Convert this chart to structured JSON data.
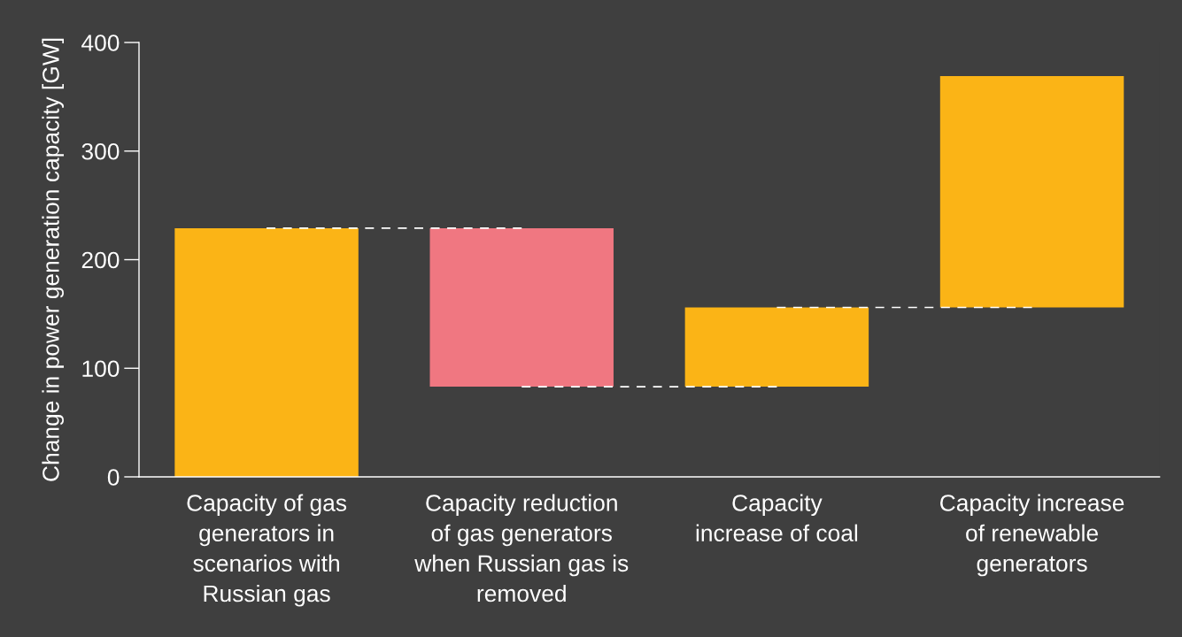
{
  "chart_data": {
    "type": "bar",
    "ylabel": "Change in power generation capacity [GW]",
    "categories": [
      "Capacity of gas\ngenerators in\nscenarios with\nRussian gas",
      "Capacity reduction\nof gas generators\nwhen Russian gas is\nremoved",
      "Capacity\nincrease of coal",
      "Capacity increase\nof renewable\ngenerators"
    ],
    "values": [
      229,
      -146,
      73,
      213
    ],
    "base": [
      0,
      229,
      83,
      156
    ],
    "colors": [
      "#fbb416",
      "#f07781",
      "#fbb416",
      "#fbb416"
    ],
    "series": [
      {
        "type": "line",
        "color": "#ffffff",
        "line_style": "dashed",
        "values": [
          229,
          229,
          null,
          null
        ]
      },
      {
        "type": "line",
        "color": "#ffffff",
        "line_style": "dashed",
        "values": [
          null,
          83,
          83,
          null
        ]
      },
      {
        "type": "line",
        "color": "#ffffff",
        "line_style": "dashed",
        "values": [
          null,
          null,
          156,
          156
        ]
      }
    ],
    "ylim": [
      0,
      400
    ],
    "yticks": [
      0,
      100,
      200,
      300,
      400
    ],
    "grid": false,
    "legend": false
  }
}
